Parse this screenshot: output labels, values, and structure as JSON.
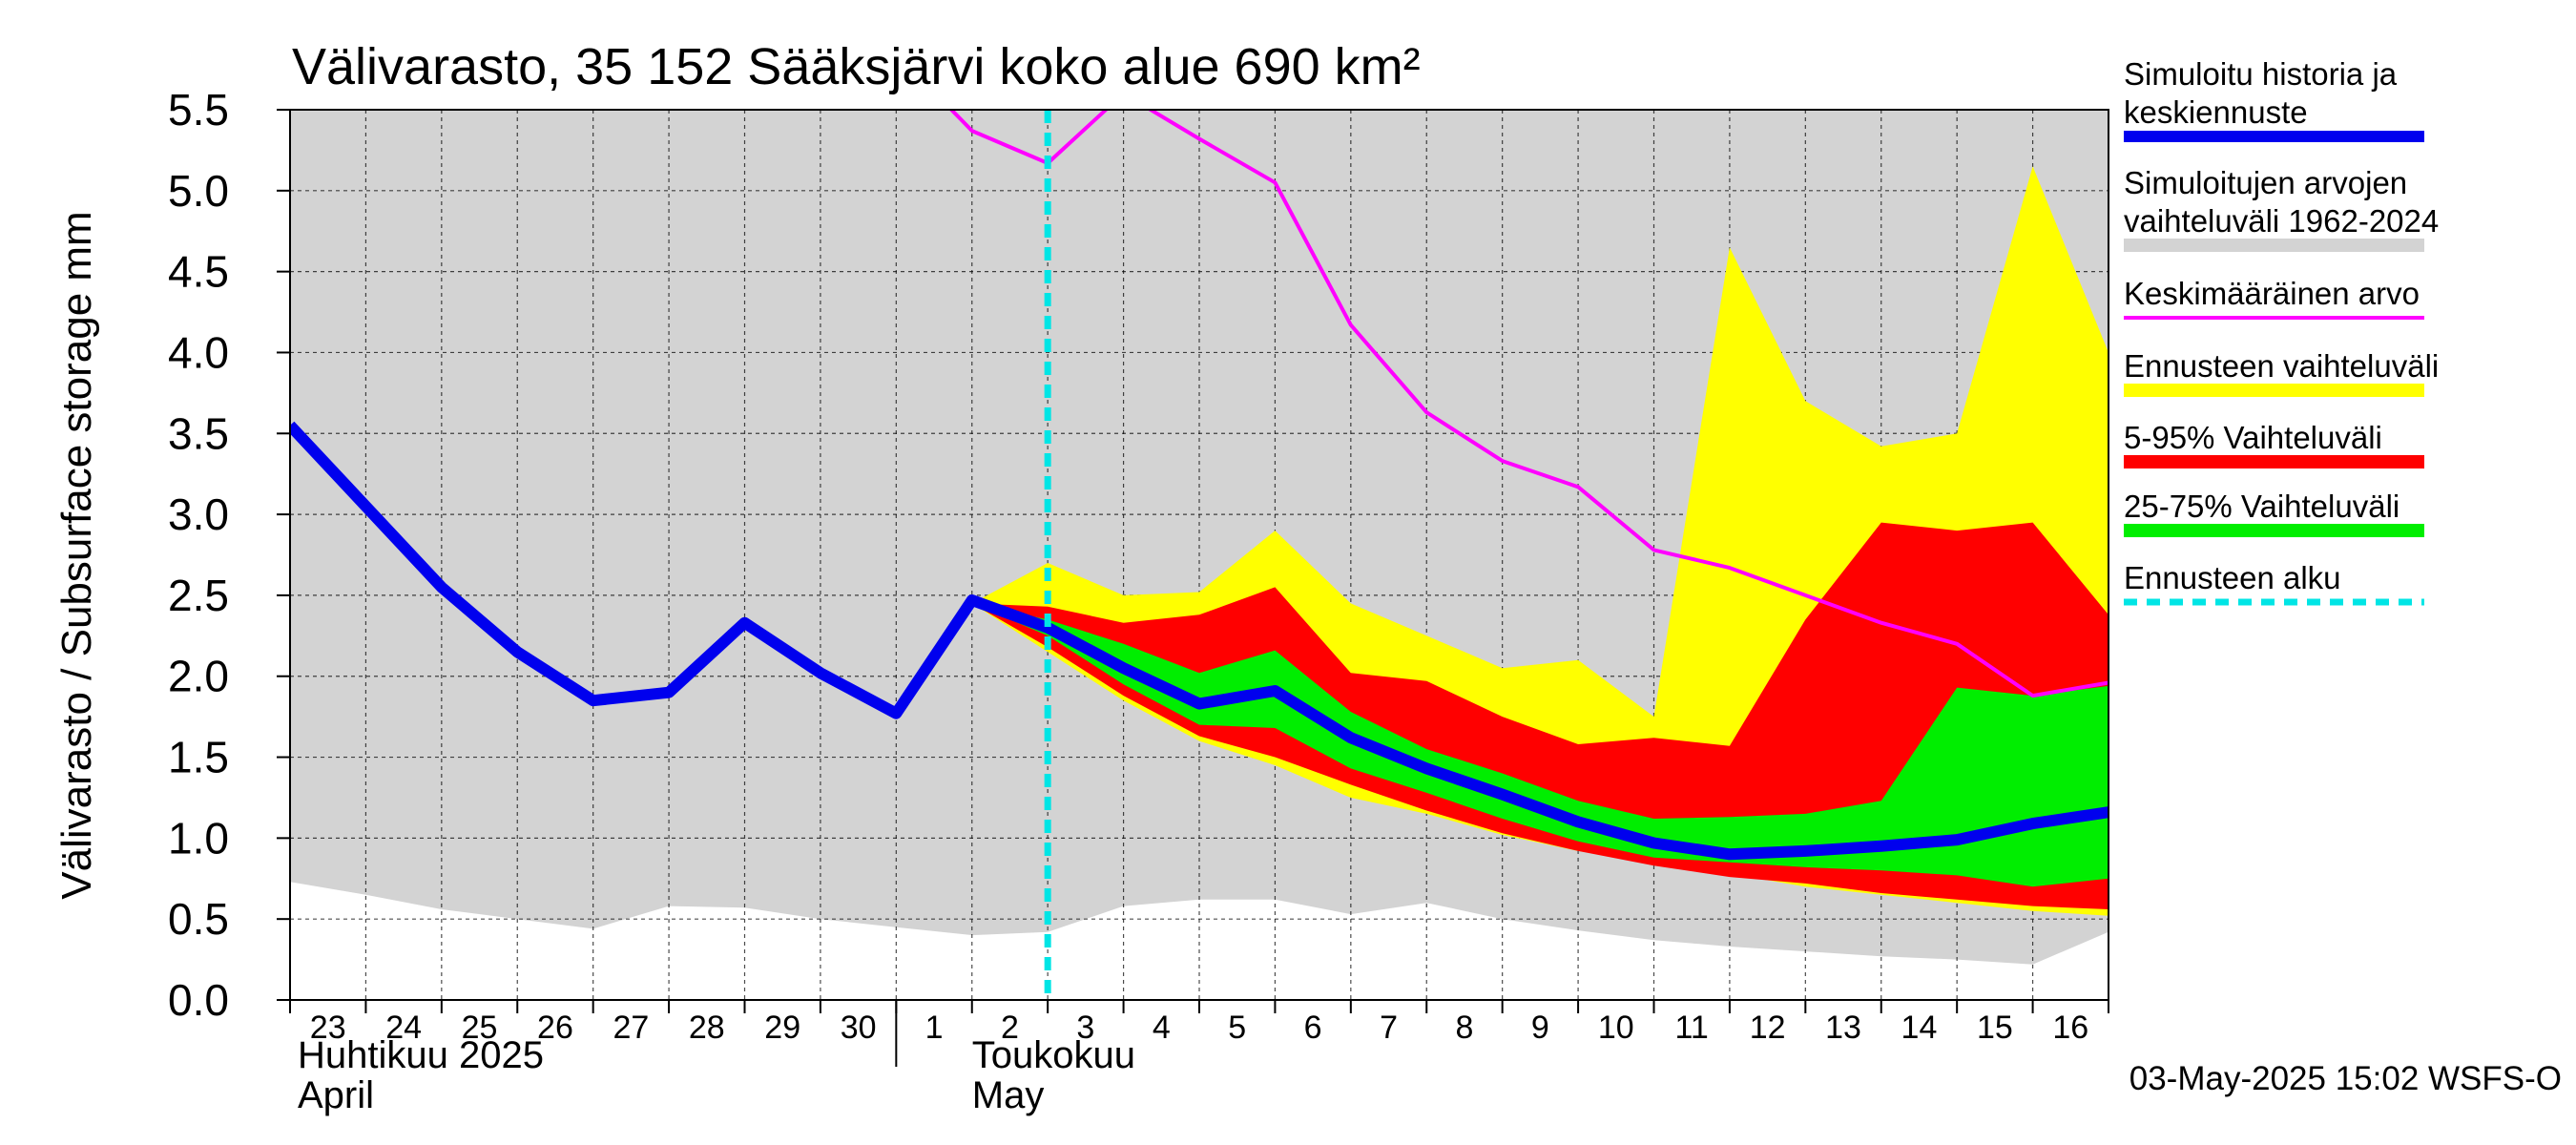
{
  "chart_data": {
    "type": "area",
    "title": "Välivarasto, 35 152 Sääksjärvi koko alue 690 km²",
    "ylabel": "Välivarasto / Subsurface storage  mm",
    "ylim": [
      0,
      5.5
    ],
    "yticks": [
      "0.0",
      "0.5",
      "1.0",
      "1.5",
      "2.0",
      "2.5",
      "3.0",
      "3.5",
      "4.0",
      "4.5",
      "5.0",
      "5.5"
    ],
    "x_start": "2025-04-23",
    "x_end": "2025-05-17",
    "xtick_labels": [
      "23",
      "24",
      "25",
      "26",
      "27",
      "28",
      "29",
      "30",
      "1",
      "2",
      "3",
      "4",
      "5",
      "6",
      "7",
      "8",
      "9",
      "10",
      "11",
      "12",
      "13",
      "14",
      "15",
      "16"
    ],
    "month_labels": {
      "april_fi": "Huhtikuu  2025",
      "april_en": "April",
      "may_fi": "Toukokuu",
      "may_en": "May"
    },
    "grid": true,
    "forecast_start": "2025-05-03",
    "footer": "03-May-2025 15:02 WSFS-O",
    "colors": {
      "history_range": "#d3d3d3",
      "ensemble_range": "#ffff00",
      "p5_95": "#ff0000",
      "p25_75": "#00ee00",
      "history_line": "#0000ee",
      "mean_line": "#ff00ff",
      "forecast_start": "#00e5e5"
    },
    "legend": [
      {
        "key": "history_line",
        "label": "Simuloitu historia ja keskiennuste",
        "color": "#0000ee",
        "style": "thick"
      },
      {
        "key": "history_range",
        "label": "Simuloitujen arvojen vaihteluväli 1962-2024",
        "color": "#d3d3d3",
        "style": "band"
      },
      {
        "key": "mean_line",
        "label": "Keskimääräinen arvo",
        "color": "#ff00ff",
        "style": "thin"
      },
      {
        "key": "ensemble_range",
        "label": "Ennusteen vaihteluväli",
        "color": "#ffff00",
        "style": "band"
      },
      {
        "key": "p5_95",
        "label": "5-95% Vaihteluväli",
        "color": "#ff0000",
        "style": "band"
      },
      {
        "key": "p25_75",
        "label": "25-75% Vaihteluväli",
        "color": "#00ee00",
        "style": "band"
      },
      {
        "key": "forecast_start",
        "label": "Ennusteen alku",
        "color": "#00e5e5",
        "style": "dashed"
      }
    ],
    "series": [
      {
        "key": "history_range",
        "x": [
          "2025-04-23",
          "2025-04-24",
          "2025-04-25",
          "2025-04-26",
          "2025-04-27",
          "2025-04-28",
          "2025-04-29",
          "2025-04-30",
          "2025-05-01",
          "2025-05-02",
          "2025-05-03",
          "2025-05-04",
          "2025-05-05",
          "2025-05-06",
          "2025-05-07",
          "2025-05-08",
          "2025-05-09",
          "2025-05-10",
          "2025-05-11",
          "2025-05-12",
          "2025-05-13",
          "2025-05-14",
          "2025-05-15",
          "2025-05-16",
          "2025-05-17"
        ],
        "low": [
          0.73,
          0.65,
          0.56,
          0.5,
          0.44,
          0.58,
          0.57,
          0.5,
          0.45,
          0.4,
          0.42,
          0.58,
          0.62,
          0.62,
          0.53,
          0.6,
          0.5,
          0.43,
          0.37,
          0.33,
          0.3,
          0.27,
          0.25,
          0.22,
          0.42
        ],
        "high": [
          5.5,
          5.5,
          5.5,
          5.5,
          5.5,
          5.5,
          5.5,
          5.5,
          5.5,
          5.5,
          5.5,
          5.5,
          5.5,
          5.5,
          5.5,
          5.5,
          5.5,
          5.5,
          5.5,
          5.5,
          5.5,
          5.5,
          5.5,
          5.5,
          5.5
        ]
      },
      {
        "key": "ensemble_range",
        "x": [
          "2025-05-02",
          "2025-05-03",
          "2025-05-04",
          "2025-05-05",
          "2025-05-06",
          "2025-05-07",
          "2025-05-08",
          "2025-05-09",
          "2025-05-10",
          "2025-05-11",
          "2025-05-12",
          "2025-05-13",
          "2025-05-14",
          "2025-05-15",
          "2025-05-16",
          "2025-05-17"
        ],
        "low": [
          2.45,
          2.15,
          1.85,
          1.6,
          1.45,
          1.25,
          1.15,
          1.02,
          0.92,
          0.85,
          0.78,
          0.7,
          0.65,
          0.6,
          0.55,
          0.52
        ],
        "high": [
          2.45,
          2.7,
          2.5,
          2.52,
          2.9,
          2.45,
          2.25,
          2.05,
          2.1,
          1.75,
          4.65,
          3.7,
          3.42,
          3.5,
          5.15,
          4.0
        ]
      },
      {
        "key": "p5_95",
        "x": [
          "2025-05-02",
          "2025-05-03",
          "2025-05-04",
          "2025-05-05",
          "2025-05-06",
          "2025-05-07",
          "2025-05-08",
          "2025-05-09",
          "2025-05-10",
          "2025-05-11",
          "2025-05-12",
          "2025-05-13",
          "2025-05-14",
          "2025-05-15",
          "2025-05-16",
          "2025-05-17"
        ],
        "low": [
          2.45,
          2.18,
          1.88,
          1.63,
          1.5,
          1.33,
          1.17,
          1.03,
          0.92,
          0.83,
          0.76,
          0.72,
          0.66,
          0.62,
          0.58,
          0.56
        ],
        "high": [
          2.45,
          2.43,
          2.33,
          2.38,
          2.55,
          2.02,
          1.97,
          1.75,
          1.58,
          1.62,
          1.57,
          2.35,
          2.95,
          2.9,
          2.95,
          2.38
        ]
      },
      {
        "key": "p25_75",
        "x": [
          "2025-05-02",
          "2025-05-03",
          "2025-05-04",
          "2025-05-05",
          "2025-05-06",
          "2025-05-07",
          "2025-05-08",
          "2025-05-09",
          "2025-05-10",
          "2025-05-11",
          "2025-05-12",
          "2025-05-13",
          "2025-05-14",
          "2025-05-15",
          "2025-05-16",
          "2025-05-17"
        ],
        "low": [
          2.45,
          2.25,
          1.95,
          1.7,
          1.68,
          1.43,
          1.28,
          1.12,
          0.98,
          0.88,
          0.85,
          0.82,
          0.8,
          0.77,
          0.7,
          0.75
        ],
        "high": [
          2.45,
          2.35,
          2.2,
          2.02,
          2.16,
          1.78,
          1.55,
          1.4,
          1.23,
          1.12,
          1.13,
          1.15,
          1.23,
          1.93,
          1.88,
          1.94
        ]
      },
      {
        "key": "history_line",
        "x": [
          "2025-04-23",
          "2025-04-24",
          "2025-04-25",
          "2025-04-26",
          "2025-04-27",
          "2025-04-28",
          "2025-04-29",
          "2025-04-30",
          "2025-05-01",
          "2025-05-02",
          "2025-05-03",
          "2025-05-04",
          "2025-05-05",
          "2025-05-06",
          "2025-05-07",
          "2025-05-08",
          "2025-05-09",
          "2025-05-10",
          "2025-05-11",
          "2025-05-12",
          "2025-05-13",
          "2025-05-14",
          "2025-05-15",
          "2025-05-16",
          "2025-05-17"
        ],
        "y": [
          3.55,
          3.05,
          2.55,
          2.15,
          1.85,
          1.9,
          2.33,
          2.02,
          1.77,
          2.47,
          2.3,
          2.05,
          1.83,
          1.91,
          1.62,
          1.43,
          1.27,
          1.1,
          0.97,
          0.9,
          0.92,
          0.95,
          0.99,
          1.09,
          1.16
        ]
      },
      {
        "key": "mean_line",
        "x": [
          "2025-05-01",
          "2025-05-02",
          "2025-05-03",
          "2025-05-04",
          "2025-05-05",
          "2025-05-06",
          "2025-05-07",
          "2025-05-08",
          "2025-05-09",
          "2025-05-10",
          "2025-05-11",
          "2025-05-12",
          "2025-05-13",
          "2025-05-14",
          "2025-05-15",
          "2025-05-16",
          "2025-05-17"
        ],
        "y": [
          5.85,
          5.37,
          5.17,
          5.6,
          5.32,
          5.05,
          4.17,
          3.63,
          3.33,
          3.17,
          2.78,
          2.67,
          2.5,
          2.33,
          2.2,
          1.88,
          1.96
        ]
      }
    ]
  }
}
